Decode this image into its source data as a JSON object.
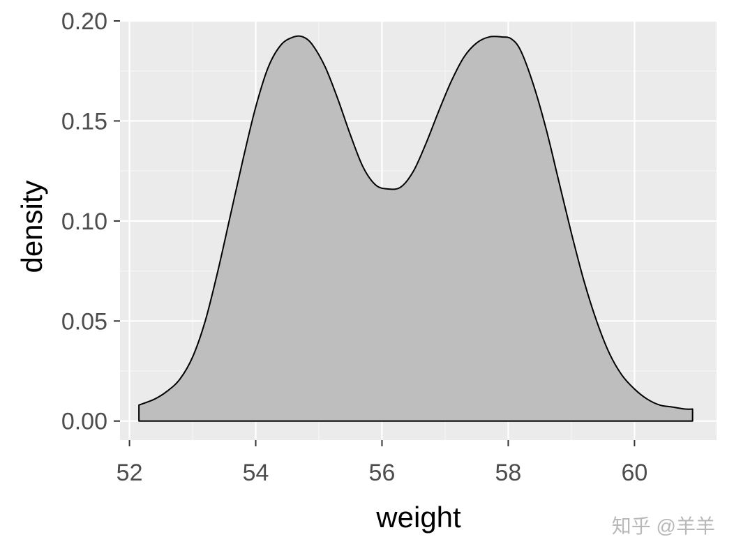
{
  "chart_data": {
    "type": "area",
    "title": "",
    "xlabel": "weight",
    "ylabel": "density",
    "xlim": [
      51.85,
      61.3
    ],
    "ylim": [
      -0.0095,
      0.2
    ],
    "xticks": [
      52,
      54,
      56,
      58,
      60
    ],
    "yticks": [
      0.0,
      0.05,
      0.1,
      0.15,
      0.2
    ],
    "xtick_labels": [
      "52",
      "54",
      "56",
      "58",
      "60"
    ],
    "ytick_labels": [
      "0.00",
      "0.05",
      "0.10",
      "0.15",
      "0.20"
    ],
    "grid": true,
    "legend": "none",
    "colors": {
      "panel_background": "#ebebeb",
      "grid_major": "#ffffff",
      "grid_minor": "#f5f5f5",
      "fill": "#bebebe",
      "outline": "#000000",
      "tick_color": "#333333"
    },
    "series": [
      {
        "x": [
          52.15,
          52.4,
          52.6,
          52.8,
          53.0,
          53.2,
          53.4,
          53.6,
          53.8,
          54.0,
          54.2,
          54.4,
          54.6,
          54.75,
          54.9,
          55.1,
          55.3,
          55.5,
          55.7,
          55.9,
          56.1,
          56.3,
          56.5,
          56.7,
          56.9,
          57.1,
          57.3,
          57.5,
          57.7,
          57.9,
          58.05,
          58.2,
          58.4,
          58.6,
          58.8,
          59.0,
          59.2,
          59.4,
          59.6,
          59.8,
          60.0,
          60.2,
          60.4,
          60.6,
          60.8,
          60.92
        ],
        "y": [
          0.008,
          0.011,
          0.015,
          0.021,
          0.032,
          0.05,
          0.075,
          0.103,
          0.131,
          0.157,
          0.177,
          0.188,
          0.192,
          0.192,
          0.188,
          0.177,
          0.161,
          0.143,
          0.127,
          0.118,
          0.116,
          0.117,
          0.125,
          0.139,
          0.155,
          0.17,
          0.182,
          0.189,
          0.192,
          0.192,
          0.191,
          0.185,
          0.168,
          0.146,
          0.12,
          0.094,
          0.07,
          0.05,
          0.034,
          0.023,
          0.016,
          0.011,
          0.008,
          0.007,
          0.006,
          0.006
        ]
      }
    ]
  },
  "watermark": "知乎 @羊羊"
}
